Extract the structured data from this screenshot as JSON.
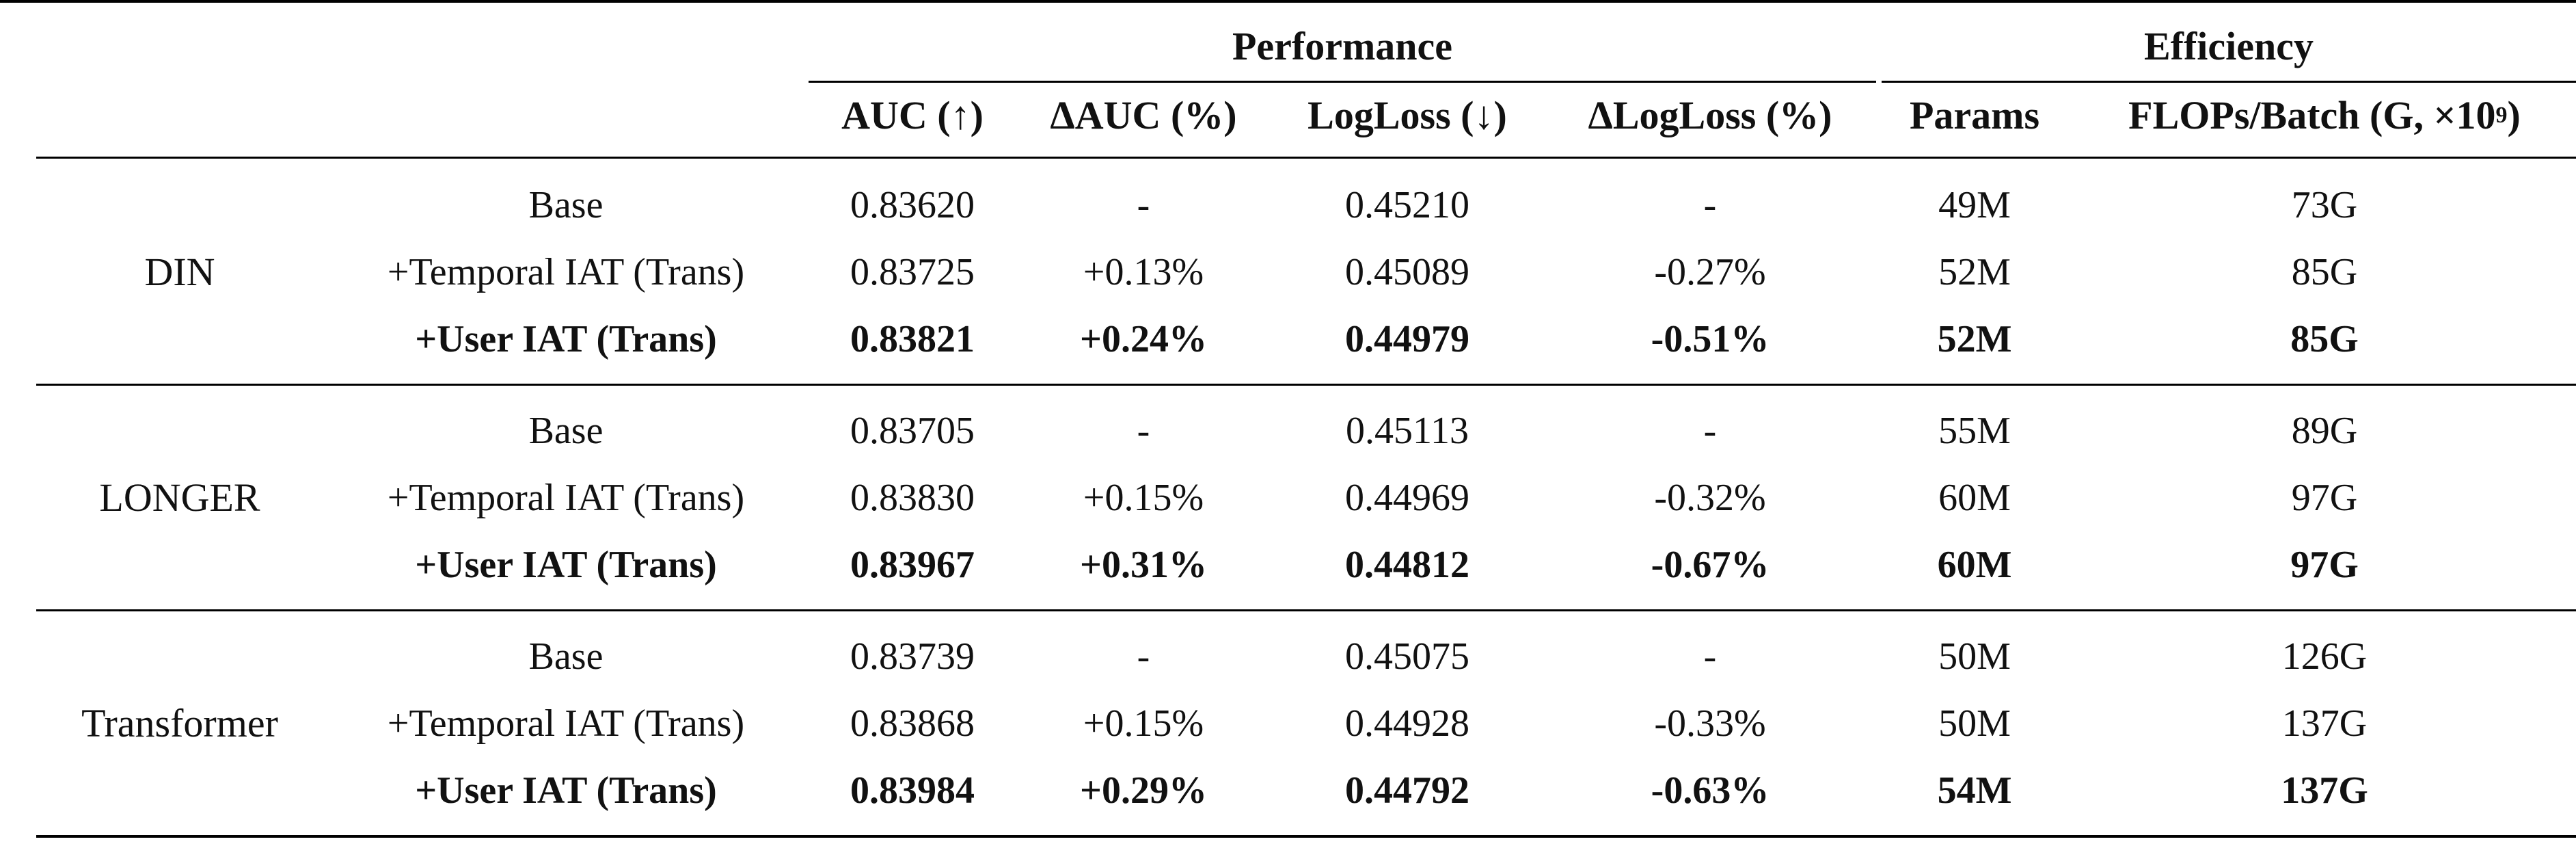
{
  "header": {
    "group_performance": "Performance",
    "group_efficiency": "Efficiency",
    "columns": [
      "AUC (↑)",
      "ΔAUC (%)",
      "LogLoss (↓)",
      "ΔLogLoss (%)",
      "Params",
      "FLOPs/Batch (G, ×10"
    ],
    "flops_exponent": "9",
    "flops_suffix": ")"
  },
  "groups": [
    {
      "model": "DIN",
      "rows": [
        {
          "variant": "Base",
          "auc": "0.83620",
          "dauc": "-",
          "logloss": "0.45210",
          "dlogloss": "-",
          "params": "49M",
          "flops": "73G"
        },
        {
          "variant": "+Temporal IAT (Trans)",
          "auc": "0.83725",
          "dauc": "+0.13%",
          "logloss": "0.45089",
          "dlogloss": "-0.27%",
          "params": "52M",
          "flops": "85G"
        },
        {
          "variant": "+User IAT (Trans)",
          "auc": "0.83821",
          "dauc": "+0.24%",
          "logloss": "0.44979",
          "dlogloss": "-0.51%",
          "params": "52M",
          "flops": "85G"
        }
      ]
    },
    {
      "model": "LONGER",
      "rows": [
        {
          "variant": "Base",
          "auc": "0.83705",
          "dauc": "-",
          "logloss": "0.45113",
          "dlogloss": "-",
          "params": "55M",
          "flops": "89G"
        },
        {
          "variant": "+Temporal IAT (Trans)",
          "auc": "0.83830",
          "dauc": "+0.15%",
          "logloss": "0.44969",
          "dlogloss": "-0.32%",
          "params": "60M",
          "flops": "97G"
        },
        {
          "variant": "+User IAT (Trans)",
          "auc": "0.83967",
          "dauc": "+0.31%",
          "logloss": "0.44812",
          "dlogloss": "-0.67%",
          "params": "60M",
          "flops": "97G"
        }
      ]
    },
    {
      "model": "Transformer",
      "rows": [
        {
          "variant": "Base",
          "auc": "0.83739",
          "dauc": "-",
          "logloss": "0.45075",
          "dlogloss": "-",
          "params": "50M",
          "flops": "126G"
        },
        {
          "variant": "+Temporal IAT (Trans)",
          "auc": "0.83868",
          "dauc": "+0.15%",
          "logloss": "0.44928",
          "dlogloss": "-0.33%",
          "params": "50M",
          "flops": "137G"
        },
        {
          "variant": "+User IAT (Trans)",
          "auc": "0.83984",
          "dauc": "+0.29%",
          "logloss": "0.44792",
          "dlogloss": "-0.63%",
          "params": "54M",
          "flops": "137G"
        }
      ]
    }
  ]
}
